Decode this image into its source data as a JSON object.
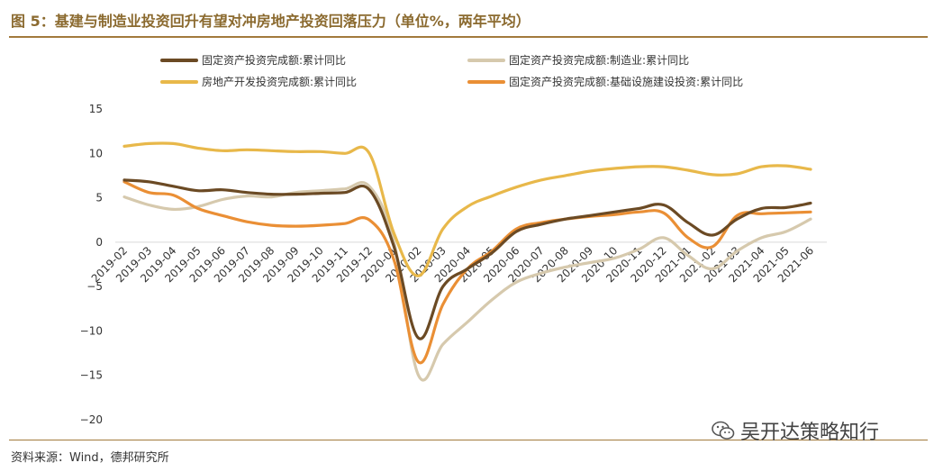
{
  "title": "图 5：基建与制造业投资回升有望对冲房地产投资回落压力（单位%，两年平均）",
  "source": "资料来源：Wind，德邦研究所",
  "watermark": "吴开达策略知行",
  "chart_data": {
    "type": "line",
    "title": "",
    "xlabel": "",
    "ylabel": "",
    "ylim": [
      -20,
      15
    ],
    "yticks": [
      15,
      10,
      5,
      0,
      -5,
      -10,
      -15,
      -20
    ],
    "grid": false,
    "legend_position": "top",
    "categories": [
      "2019-02",
      "2019-03",
      "2019-04",
      "2019-05",
      "2019-06",
      "2019-07",
      "2019-08",
      "2019-09",
      "2019-10",
      "2019-11",
      "2019-12",
      "2020-01",
      "2020-02",
      "2020-03",
      "2020-04",
      "2020-05",
      "2020-06",
      "2020-07",
      "2020-08",
      "2020-09",
      "2020-10",
      "2020-11",
      "2020-12",
      "2021-01",
      "2021-02",
      "2021-03",
      "2021-04",
      "2021-05",
      "2021-06"
    ],
    "series": [
      {
        "name": "固定资产投资完成额:累计同比",
        "color": "#6b4a24",
        "values": [
          7.0,
          6.8,
          6.3,
          5.8,
          5.9,
          5.6,
          5.4,
          5.4,
          5.5,
          5.6,
          5.9,
          -0.5,
          -10.8,
          -5.0,
          -3.0,
          -1.2,
          1.2,
          2.0,
          2.6,
          3.0,
          3.4,
          3.8,
          4.2,
          2.2,
          0.8,
          2.6,
          3.8,
          3.9,
          4.4
        ]
      },
      {
        "name": "固定资产投资完成额:制造业:累计同比",
        "color": "#d6c9ad",
        "values": [
          5.1,
          4.2,
          3.7,
          4.0,
          4.8,
          5.2,
          5.1,
          5.6,
          5.8,
          6.0,
          6.3,
          0.0,
          -15.0,
          -11.5,
          -9.0,
          -6.5,
          -4.5,
          -3.5,
          -2.8,
          -2.3,
          -1.8,
          -0.8,
          0.5,
          -1.5,
          -3.0,
          -1.0,
          0.5,
          1.2,
          2.6
        ]
      },
      {
        "name": "房地产开发投资完成额:累计同比",
        "color": "#e8b84a",
        "values": [
          10.8,
          11.1,
          11.1,
          10.6,
          10.3,
          10.4,
          10.3,
          10.2,
          10.2,
          10.0,
          10.0,
          1.0,
          -3.8,
          1.5,
          4.0,
          5.2,
          6.2,
          7.0,
          7.5,
          8.0,
          8.3,
          8.5,
          8.5,
          8.1,
          7.6,
          7.7,
          8.5,
          8.6,
          8.2
        ]
      },
      {
        "name": "固定资产投资完成额:基础设施建设投资:累计同比",
        "color": "#ea8f35",
        "values": [
          6.8,
          5.6,
          5.3,
          3.8,
          3.0,
          2.3,
          1.9,
          1.8,
          1.9,
          2.1,
          2.5,
          -2.0,
          -13.5,
          -7.0,
          -3.0,
          -1.0,
          1.5,
          2.2,
          2.6,
          2.9,
          3.1,
          3.4,
          3.3,
          0.5,
          -0.5,
          3.0,
          3.2,
          3.3,
          3.4
        ]
      }
    ]
  }
}
